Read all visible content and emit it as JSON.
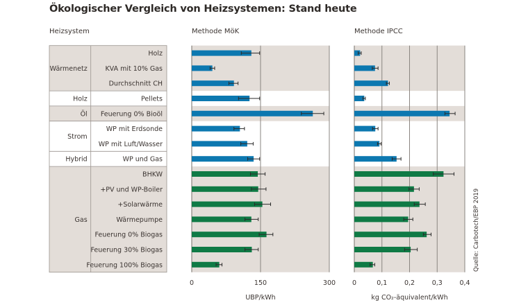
{
  "title": "Ökologischer Vergleich von Heizsystemen: Stand heute",
  "headers": {
    "table": "Heizsystem",
    "left": "Methode MöK",
    "right": "Methode IPCC"
  },
  "source": "Quelle: Carbotech/EBP 2019",
  "colors": {
    "blue": "#0c78b0",
    "green": "#0f7a45",
    "shade": "#e3ddd8",
    "grid": "#8a8580",
    "error": "#2a2a2a"
  },
  "groups": [
    {
      "name": "Wärmenetz",
      "rows": 3,
      "shaded": true
    },
    {
      "name": "Holz",
      "rows": 1,
      "shaded": false
    },
    {
      "name": "Öl",
      "rows": 1,
      "shaded": true
    },
    {
      "name": "Strom",
      "rows": 2,
      "shaded": false
    },
    {
      "name": "Hybrid",
      "rows": 1,
      "shaded": false
    },
    {
      "name": "Gas",
      "rows": 7,
      "shaded": true
    }
  ],
  "chart_data": [
    {
      "type": "bar",
      "orientation": "horizontal",
      "title": "Methode MöK",
      "xlabel": "UBP/kWh",
      "xlim": [
        0,
        300
      ],
      "xticks": [
        "0",
        "150",
        "300"
      ],
      "grid": true,
      "categories": [
        "Holz",
        "KVA mit 10% Gas",
        "Durchschnitt CH",
        "Pellets",
        "Feuerung 0% Bioöl",
        "WP mit Erdsonde",
        "WP mit Luft/Wasser",
        "WP und Gas",
        "BHKW",
        "+PV und WP-Boiler",
        "+Solarwärme",
        "Wärmepumpe",
        "Feuerung 0% Biogas",
        "Feuerung 30% Biogas",
        "Feuerung 100% Biogas"
      ],
      "series": [
        {
          "values": [
            130,
            45,
            92,
            126,
            264,
            105,
            121,
            135,
            144,
            145,
            154,
            130,
            163,
            131,
            60
          ],
          "error_low": [
            108,
            40,
            81,
            102,
            239,
            92,
            107,
            122,
            128,
            130,
            137,
            116,
            147,
            116,
            53
          ],
          "error_high": [
            148,
            50,
            101,
            148,
            288,
            115,
            134,
            148,
            160,
            162,
            172,
            145,
            177,
            145,
            66
          ],
          "colors": [
            "blue",
            "blue",
            "blue",
            "blue",
            "blue",
            "blue",
            "blue",
            "blue",
            "green",
            "green",
            "green",
            "green",
            "green",
            "green",
            "green"
          ]
        }
      ]
    },
    {
      "type": "bar",
      "orientation": "horizontal",
      "title": "Methode IPCC",
      "xlabel": "kg CO₂-äquivalent/kWh",
      "xlim": [
        0,
        0.4
      ],
      "xticks": [
        "0",
        "0,1",
        "0,2",
        "0,3",
        "0,4"
      ],
      "grid": true,
      "categories": [
        "Holz",
        "KVA mit 10% Gas",
        "Durchschnitt CH",
        "Pellets",
        "Feuerung 0% Bioöl",
        "WP mit Erdsonde",
        "WP mit Luft/Wasser",
        "WP und Gas",
        "BHKW",
        "+PV und WP-Boiler",
        "+Solarwärme",
        "Wärmepumpe",
        "Feuerung 0% Biogas",
        "Feuerung 30% Biogas",
        "Feuerung 100% Biogas"
      ],
      "series": [
        {
          "values": [
            0.021,
            0.075,
            0.122,
            0.036,
            0.345,
            0.076,
            0.091,
            0.153,
            0.323,
            0.216,
            0.236,
            0.195,
            0.262,
            0.204,
            0.067
          ],
          "error_low": [
            0.014,
            0.065,
            0.116,
            0.031,
            0.328,
            0.066,
            0.084,
            0.137,
            0.286,
            0.198,
            0.217,
            0.179,
            0.25,
            0.182,
            0.057
          ],
          "error_high": [
            0.025,
            0.086,
            0.127,
            0.04,
            0.365,
            0.086,
            0.097,
            0.169,
            0.361,
            0.235,
            0.257,
            0.212,
            0.278,
            0.228,
            0.074
          ],
          "colors": [
            "blue",
            "blue",
            "blue",
            "blue",
            "blue",
            "blue",
            "blue",
            "blue",
            "green",
            "green",
            "green",
            "green",
            "green",
            "green",
            "green"
          ]
        }
      ]
    }
  ]
}
